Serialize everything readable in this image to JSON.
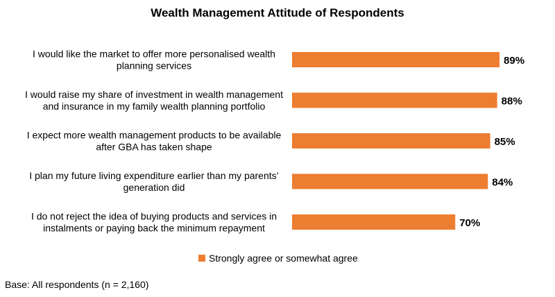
{
  "chart_data": {
    "type": "bar",
    "orientation": "horizontal",
    "title": "Wealth Management Attitude of Respondents",
    "categories": [
      [
        "I would like the market to offer more personalised wealth",
        "planning services"
      ],
      [
        "I would raise my share of investment in wealth management",
        "and insurance in my family wealth planning portfolio"
      ],
      [
        "I expect more wealth management products to be available",
        "after GBA has taken shape"
      ],
      [
        "I plan my future living expenditure earlier than my parents’",
        "generation did"
      ],
      [
        "I do not reject the idea of buying products and services in",
        "instalments or paying back the minimum repayment"
      ]
    ],
    "series": [
      {
        "name": "Strongly agree or somewhat agree",
        "values": [
          89,
          88,
          85,
          84,
          70
        ],
        "color": "#ED7D31"
      }
    ],
    "value_labels": [
      "89%",
      "88%",
      "85%",
      "84%",
      "70%"
    ],
    "xlim": [
      0,
      100
    ],
    "grid": false,
    "legend_position": "bottom"
  },
  "footnote": "Base: All respondents (n = 2,160)"
}
